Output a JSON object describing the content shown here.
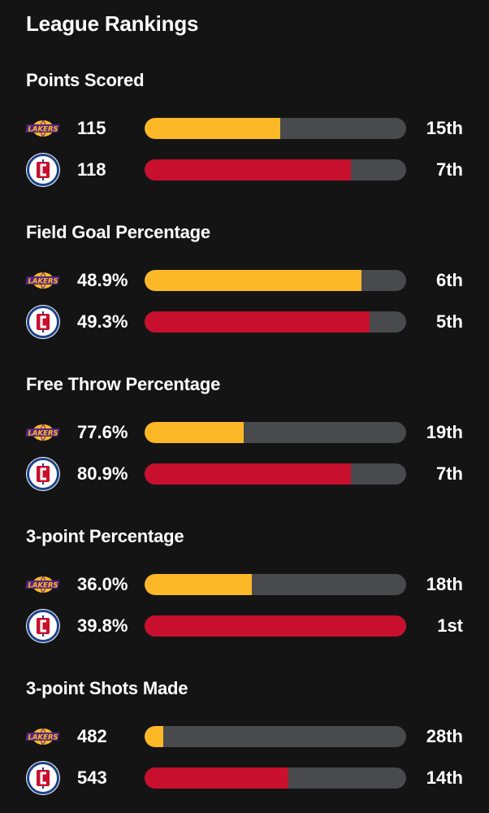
{
  "header": {
    "title": "League Rankings"
  },
  "colors": {
    "lakers_bar": "#fcb826",
    "clippers_bar": "#c8102e",
    "track": "#484a4d",
    "background": "#141414"
  },
  "logos": {
    "lakers": {
      "icon": "lakers-logo",
      "wordmark": "LAKERS"
    },
    "clippers": {
      "icon": "clippers-logo"
    }
  },
  "stats": [
    {
      "title": "Points Scored",
      "lakers": {
        "value": "115",
        "rank": "15th",
        "fill": 0.52
      },
      "clippers": {
        "value": "118",
        "rank": "7th",
        "fill": 0.79
      }
    },
    {
      "title": "Field Goal Percentage",
      "lakers": {
        "value": "48.9%",
        "rank": "6th",
        "fill": 0.83
      },
      "clippers": {
        "value": "49.3%",
        "rank": "5th",
        "fill": 0.86
      }
    },
    {
      "title": "Free Throw Percentage",
      "lakers": {
        "value": "77.6%",
        "rank": "19th",
        "fill": 0.38
      },
      "clippers": {
        "value": "80.9%",
        "rank": "7th",
        "fill": 0.79
      }
    },
    {
      "title": "3-point Percentage",
      "lakers": {
        "value": "36.0%",
        "rank": "18th",
        "fill": 0.41
      },
      "clippers": {
        "value": "39.8%",
        "rank": "1st",
        "fill": 1.0
      }
    },
    {
      "title": "3-point Shots Made",
      "lakers": {
        "value": "482",
        "rank": "28th",
        "fill": 0.07
      },
      "clippers": {
        "value": "543",
        "rank": "14th",
        "fill": 0.55
      }
    }
  ]
}
